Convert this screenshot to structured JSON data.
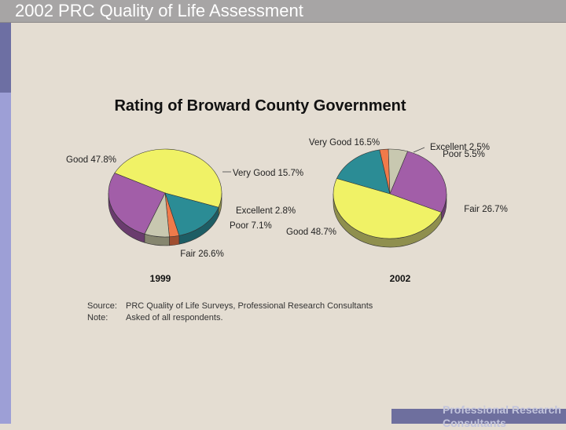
{
  "page": {
    "title": "2002 PRC Quality of Life Assessment",
    "footer_line1": "Professional Research",
    "footer_line2": "Consultants"
  },
  "source": {
    "label": "Source:",
    "text": "PRC Quality of Life Surveys, Professional Research Consultants",
    "note_label": "Note:",
    "note_text": "Asked of all respondents."
  },
  "colors": {
    "background": "#e4ddd2",
    "title_band": "#a7a5a5",
    "good": "#f0f266",
    "very_good": "#2b8c95",
    "excellent": "#f07a4a",
    "poor": "#c8c8b0",
    "fair": "#a25ea8"
  },
  "chart_data": {
    "type": "pie",
    "title": "Rating of Broward County Government",
    "categories": [
      "Excellent",
      "Very Good",
      "Good",
      "Fair",
      "Poor"
    ],
    "series": [
      {
        "name": "1999",
        "slices": [
          {
            "category": "Good",
            "value": 47.8,
            "label": "Good  47.8%"
          },
          {
            "category": "Very Good",
            "value": 15.7,
            "label": "Very Good  15.7%"
          },
          {
            "category": "Excellent",
            "value": 2.8,
            "label": "Excellent  2.8%"
          },
          {
            "category": "Poor",
            "value": 7.1,
            "label": "Poor  7.1%"
          },
          {
            "category": "Fair",
            "value": 26.6,
            "label": "Fair  26.6%"
          }
        ]
      },
      {
        "name": "2002",
        "slices": [
          {
            "category": "Very Good",
            "value": 16.5,
            "label": "Very Good  16.5%"
          },
          {
            "category": "Excellent",
            "value": 2.5,
            "label": "Excellent  2.5%"
          },
          {
            "category": "Poor",
            "value": 5.5,
            "label": "Poor  5.5%"
          },
          {
            "category": "Fair",
            "value": 26.7,
            "label": "Fair  26.7%"
          },
          {
            "category": "Good",
            "value": 48.7,
            "label": "Good  48.7%"
          }
        ]
      }
    ]
  }
}
